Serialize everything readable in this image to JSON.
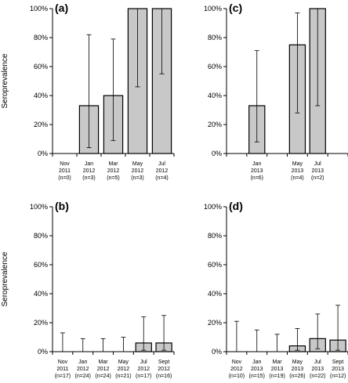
{
  "chart_data": [
    {
      "type": "bar",
      "panel_label": "(a)",
      "ylabel": "Seroprevalence",
      "ylim": [
        0,
        100
      ],
      "yticks": [
        "0%",
        "20%",
        "40%",
        "60%",
        "80%",
        "100%"
      ],
      "categories": [
        [
          "Nov",
          "2011",
          "(n=0)"
        ],
        [
          "Jan",
          "2012",
          "(n=3)"
        ],
        [
          "Mar",
          "2012",
          "(n=5)"
        ],
        [
          "May",
          "2012",
          "(n=3)"
        ],
        [
          "Jul",
          "2012",
          "(n=4)"
        ]
      ],
      "values": [
        null,
        33,
        40,
        100,
        100
      ],
      "error_low": [
        null,
        4,
        9,
        46,
        55
      ],
      "error_high": [
        null,
        82,
        79,
        100,
        100
      ],
      "extra_slots": 0
    },
    {
      "type": "bar",
      "panel_label": "(c)",
      "ylabel": "",
      "ylim": [
        0,
        100
      ],
      "yticks": [
        "0%",
        "20%",
        "40%",
        "60%",
        "80%",
        "100%"
      ],
      "categories": [
        [
          "",
          "",
          ""
        ],
        [
          "Jan",
          "2013",
          "(n=6)"
        ],
        [
          "",
          "",
          ""
        ],
        [
          "May",
          "2013",
          "(n=4)"
        ],
        [
          "Jul",
          "2013",
          "(n=2)"
        ]
      ],
      "values": [
        null,
        33,
        null,
        75,
        100
      ],
      "error_low": [
        null,
        8,
        null,
        28,
        33
      ],
      "error_high": [
        null,
        71,
        null,
        97,
        100
      ],
      "extra_slots": 1
    },
    {
      "type": "bar",
      "panel_label": "(b)",
      "ylabel": "Seroprevalence",
      "ylim": [
        0,
        100
      ],
      "yticks": [
        "0%",
        "20%",
        "40%",
        "60%",
        "80%",
        "100%"
      ],
      "categories": [
        [
          "Nov",
          "2011",
          "(n=17)"
        ],
        [
          "Jan",
          "2012",
          "(n=24)"
        ],
        [
          "Mar",
          "2012",
          "(n=24)"
        ],
        [
          "May",
          "2012",
          "(n=21)"
        ],
        [
          "Jul",
          "2012",
          "(n=17)"
        ],
        [
          "Sept",
          "2012",
          "(n=16)"
        ]
      ],
      "values": [
        0,
        0,
        0,
        0,
        6,
        6
      ],
      "error_low": [
        0,
        0,
        0,
        0,
        1,
        1
      ],
      "error_high": [
        13,
        9,
        9,
        10,
        24,
        25
      ],
      "extra_slots": 0
    },
    {
      "type": "bar",
      "panel_label": "(d)",
      "ylabel": "",
      "ylim": [
        0,
        100
      ],
      "yticks": [
        "0%",
        "20%",
        "40%",
        "60%",
        "80%",
        "100%"
      ],
      "categories": [
        [
          "Nov",
          "2012",
          "(n=10)"
        ],
        [
          "Jan",
          "2013",
          "(n=15)"
        ],
        [
          "Mar",
          "2013",
          "(n=19)"
        ],
        [
          "May",
          "2013",
          "(n=26)"
        ],
        [
          "Jul",
          "2013",
          "(n=22)"
        ],
        [
          "Sept",
          "2013",
          "(n=12)"
        ]
      ],
      "values": [
        0,
        0,
        0,
        4,
        9,
        8
      ],
      "error_low": [
        0,
        0,
        0,
        1,
        2,
        1
      ],
      "error_high": [
        21,
        15,
        12,
        16,
        26,
        32
      ],
      "extra_slots": 0
    }
  ],
  "colors": {
    "bar_fill": "#c8c8c8",
    "bar_stroke": "#000000",
    "axis": "#000000"
  }
}
